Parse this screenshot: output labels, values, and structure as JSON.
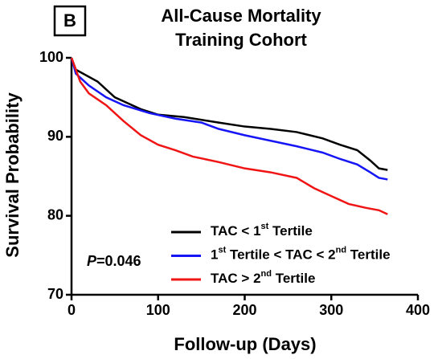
{
  "chart_data": {
    "type": "line",
    "panel_label": "B",
    "title": "All-Cause Mortality",
    "subtitle": "Training Cohort",
    "x_label": "Follow-up (Days)",
    "y_label": "Survival Probability",
    "annotation": "P=0.046",
    "xlim": [
      0,
      400
    ],
    "xticks": [
      0,
      100,
      200,
      300,
      400
    ],
    "ylim": [
      70,
      100
    ],
    "yticks": [
      70,
      80,
      90,
      100
    ],
    "series": [
      {
        "name": "TAC < 1st Tertile",
        "color": "#000000",
        "x": [
          0,
          5,
          30,
          50,
          80,
          100,
          130,
          170,
          200,
          230,
          260,
          290,
          310,
          330,
          345,
          355,
          365
        ],
        "values": [
          100,
          98.5,
          97,
          95,
          93.5,
          92.8,
          92.5,
          91.8,
          91.3,
          91,
          90.6,
          89.8,
          89,
          88.3,
          87,
          86,
          85.8
        ]
      },
      {
        "name": "1st Tertile < TAC < 2nd Tertile",
        "color": "#1515f5",
        "x": [
          0,
          5,
          20,
          40,
          60,
          90,
          120,
          150,
          170,
          200,
          230,
          260,
          290,
          310,
          330,
          345,
          355,
          365
        ],
        "values": [
          100,
          98,
          96.5,
          95,
          94,
          93,
          92.3,
          91.8,
          91,
          90.2,
          89.5,
          88.8,
          88,
          87.2,
          86.5,
          85.5,
          84.8,
          84.6
        ]
      },
      {
        "name": "TAC > 2nd Tertile",
        "color": "#f01515",
        "x": [
          0,
          10,
          20,
          40,
          60,
          80,
          100,
          120,
          140,
          170,
          200,
          230,
          260,
          280,
          300,
          320,
          340,
          355,
          365
        ],
        "values": [
          100,
          97,
          95.5,
          94,
          92,
          90.2,
          89,
          88.3,
          87.5,
          86.8,
          86,
          85.5,
          84.8,
          83.5,
          82.5,
          81.5,
          81,
          80.7,
          80.2
        ]
      }
    ]
  }
}
